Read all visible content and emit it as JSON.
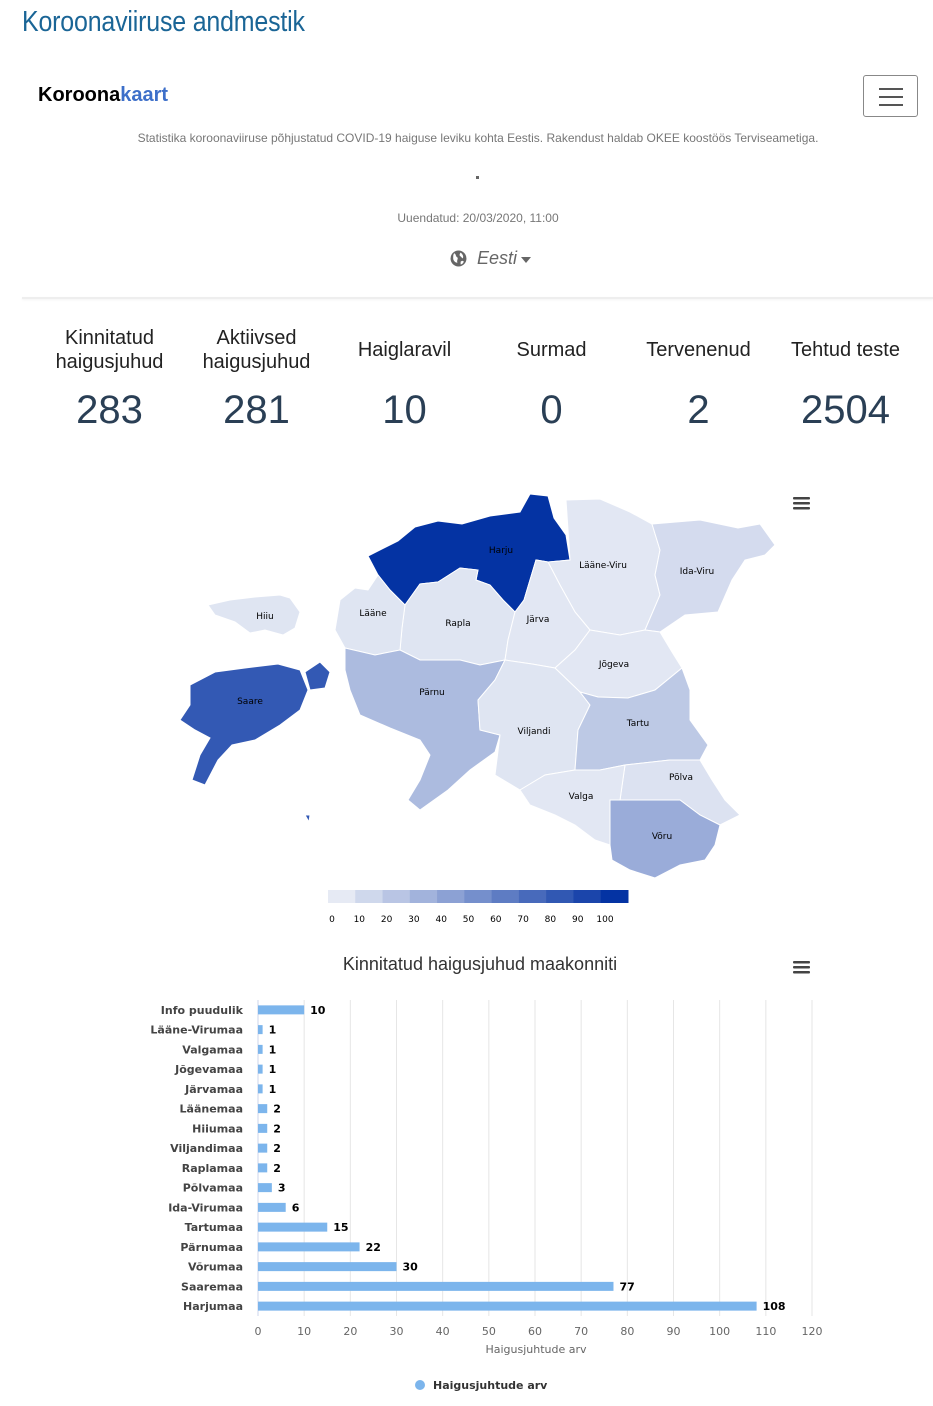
{
  "page": {
    "title": "Koroonaviiruse andmestik"
  },
  "header": {
    "brand_part1": "Koroona",
    "brand_part2": "kaart",
    "description": "Statistika koroonaviiruse põhjustatud COVID-19 haiguse leviku kohta Eestis. Rakendust haldab OKEE koostöös Terviseametiga.",
    "updated": "Uuendatud: 20/03/2020, 11:00",
    "language": "Eesti"
  },
  "stats": [
    {
      "label_line1": "Kinnitatud",
      "label_line2": "haigusjuhud",
      "value": "283"
    },
    {
      "label_line1": "Aktiivsed",
      "label_line2": "haigusjuhud",
      "value": "281"
    },
    {
      "label_line1": "Haiglaravil",
      "label_line2": "",
      "value": "10"
    },
    {
      "label_line1": "Surmad",
      "label_line2": "",
      "value": "0"
    },
    {
      "label_line1": "Tervenenud",
      "label_line2": "",
      "value": "2"
    },
    {
      "label_line1": "Tehtud teste",
      "label_line2": "",
      "value": "2504"
    }
  ],
  "map": {
    "regions": [
      {
        "name": "Harju",
        "value": 108
      },
      {
        "name": "Lääne-Viru",
        "value": 1
      },
      {
        "name": "Ida-Viru",
        "value": 6
      },
      {
        "name": "Hiiu",
        "value": 2
      },
      {
        "name": "Lääne",
        "value": 2
      },
      {
        "name": "Rapla",
        "value": 2
      },
      {
        "name": "Järva",
        "value": 1
      },
      {
        "name": "Jõgeva",
        "value": 1
      },
      {
        "name": "Saare",
        "value": 77
      },
      {
        "name": "Pärnu",
        "value": 22
      },
      {
        "name": "Viljandi",
        "value": 2
      },
      {
        "name": "Tartu",
        "value": 15
      },
      {
        "name": "Põlva",
        "value": 3
      },
      {
        "name": "Valga",
        "value": 1
      },
      {
        "name": "Võru",
        "value": 30
      }
    ],
    "legend_ticks": [
      "0",
      "10",
      "20",
      "30",
      "40",
      "50",
      "60",
      "70",
      "80",
      "90",
      "100"
    ],
    "colors": {
      "low": "#e6eaf4",
      "high": "#0433a3"
    }
  },
  "chart_data": {
    "type": "bar",
    "orientation": "horizontal",
    "title": "Kinnitatud haigusjuhud maakonniti",
    "xlabel": "Haigusjuhtude arv",
    "ylabel": "",
    "xlim": [
      0,
      120
    ],
    "x_ticks": [
      0,
      10,
      20,
      30,
      40,
      50,
      60,
      70,
      80,
      90,
      100,
      110,
      120
    ],
    "categories": [
      "Info puudulik",
      "Lääne-Virumaa",
      "Valgamaa",
      "Jõgevamaa",
      "Järvamaa",
      "Läänemaa",
      "Hiiumaa",
      "Viljandimaa",
      "Raplamaa",
      "Põlvamaa",
      "Ida-Virumaa",
      "Tartumaa",
      "Pärnumaa",
      "Võrumaa",
      "Saaremaa",
      "Harjumaa"
    ],
    "series": [
      {
        "name": "Haigusjuhtude arv",
        "values": [
          10,
          1,
          1,
          1,
          1,
          2,
          2,
          2,
          2,
          3,
          6,
          15,
          22,
          30,
          77,
          108
        ],
        "color": "#7cb5ec"
      }
    ],
    "grid": true,
    "legend": "bottom-center"
  }
}
